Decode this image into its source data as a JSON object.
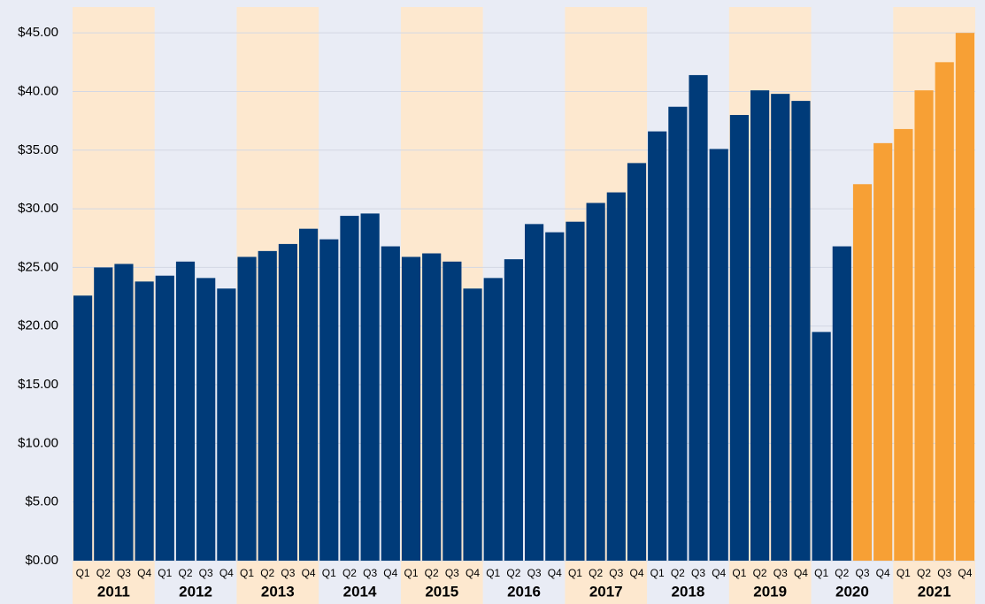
{
  "chart_data": {
    "type": "bar",
    "categories": [
      "Q1",
      "Q2",
      "Q3",
      "Q4",
      "Q1",
      "Q2",
      "Q3",
      "Q4",
      "Q1",
      "Q2",
      "Q3",
      "Q4",
      "Q1",
      "Q2",
      "Q3",
      "Q4",
      "Q1",
      "Q2",
      "Q3",
      "Q4",
      "Q1",
      "Q2",
      "Q3",
      "Q4",
      "Q1",
      "Q2",
      "Q3",
      "Q4",
      "Q1",
      "Q2",
      "Q3",
      "Q4",
      "Q1",
      "Q2",
      "Q3",
      "Q4",
      "Q1",
      "Q2",
      "Q3",
      "Q4",
      "Q1",
      "Q2",
      "Q3",
      "Q4"
    ],
    "groups": [
      "2011",
      "2012",
      "2013",
      "2014",
      "2015",
      "2016",
      "2017",
      "2018",
      "2019",
      "2020",
      "2021"
    ],
    "values": [
      22.6,
      25.0,
      25.3,
      23.8,
      24.3,
      25.5,
      24.1,
      23.2,
      25.9,
      26.4,
      27.0,
      28.3,
      27.4,
      29.4,
      29.6,
      26.8,
      25.9,
      26.2,
      25.5,
      23.2,
      24.1,
      25.7,
      28.7,
      28.0,
      28.9,
      30.5,
      31.4,
      33.9,
      36.6,
      38.7,
      41.4,
      35.1,
      38.0,
      40.1,
      39.8,
      39.2,
      19.5,
      26.8,
      32.1,
      35.6,
      36.8,
      40.1,
      42.5,
      45.0
    ],
    "colors": [
      "#003b79",
      "#003b79",
      "#003b79",
      "#003b79",
      "#003b79",
      "#003b79",
      "#003b79",
      "#003b79",
      "#003b79",
      "#003b79",
      "#003b79",
      "#003b79",
      "#003b79",
      "#003b79",
      "#003b79",
      "#003b79",
      "#003b79",
      "#003b79",
      "#003b79",
      "#003b79",
      "#003b79",
      "#003b79",
      "#003b79",
      "#003b79",
      "#003b79",
      "#003b79",
      "#003b79",
      "#003b79",
      "#003b79",
      "#003b79",
      "#003b79",
      "#003b79",
      "#003b79",
      "#003b79",
      "#003b79",
      "#003b79",
      "#003b79",
      "#003b79",
      "#f7a035",
      "#f7a035",
      "#f7a035",
      "#f7a035",
      "#f7a035",
      "#f7a035"
    ],
    "ylim": [
      0,
      47.2
    ],
    "yticks": [
      {
        "value": 0,
        "label": "$0.00"
      },
      {
        "value": 5,
        "label": "$5.00"
      },
      {
        "value": 10,
        "label": "$10.00"
      },
      {
        "value": 15,
        "label": "$15.00"
      },
      {
        "value": 20,
        "label": "$20.00"
      },
      {
        "value": 25,
        "label": "$25.00"
      },
      {
        "value": 30,
        "label": "$30.00"
      },
      {
        "value": 35,
        "label": "$35.00"
      },
      {
        "value": 40,
        "label": "$40.00"
      },
      {
        "value": 45,
        "label": "$45.00"
      }
    ],
    "grid": true
  }
}
